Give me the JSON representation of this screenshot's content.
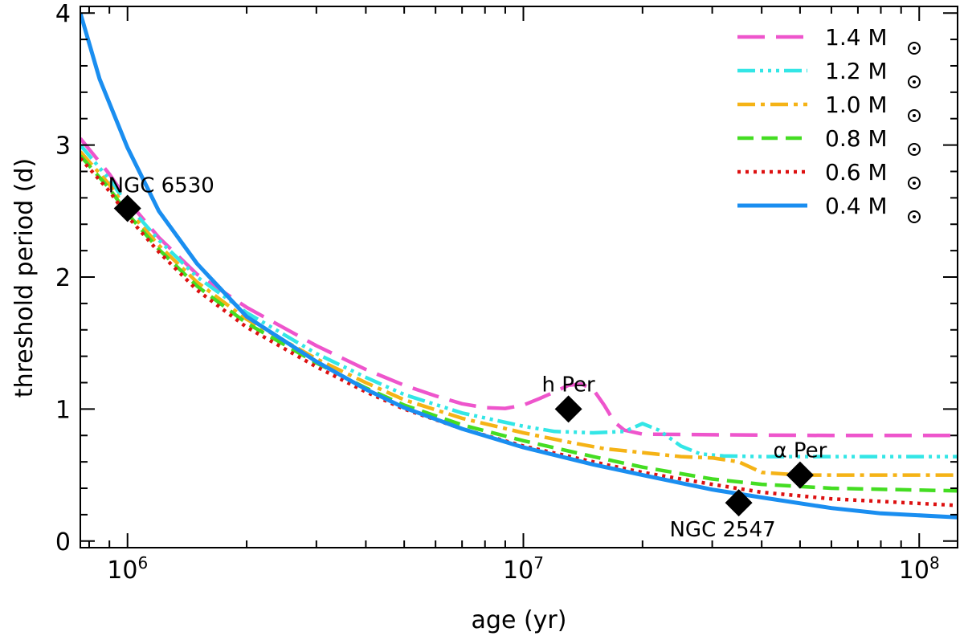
{
  "chart_data": {
    "type": "line",
    "xlabel": "age (yr)",
    "ylabel": "threshold period (d)",
    "xscale": "log",
    "xlim": [
      760000,
      125000000
    ],
    "ylim": [
      -0.05,
      4.05
    ],
    "x_ticks": [
      {
        "value": 1000000,
        "base": "10",
        "exp": "6"
      },
      {
        "value": 10000000,
        "base": "10",
        "exp": "7"
      },
      {
        "value": 100000000,
        "base": "10",
        "exp": "8"
      }
    ],
    "y_ticks": [
      {
        "value": 0,
        "label": "0"
      },
      {
        "value": 1,
        "label": "1"
      },
      {
        "value": 2,
        "label": "2"
      },
      {
        "value": 3,
        "label": "3"
      },
      {
        "value": 4,
        "label": "4"
      }
    ],
    "legend_position": "top-right",
    "series": [
      {
        "name": "1.4 M",
        "mass": "1.4",
        "unit": "M",
        "color": "#ee55cc",
        "dash": "34,14",
        "width": 4.5,
        "points": [
          [
            760000,
            3.05
          ],
          [
            900000,
            2.78
          ],
          [
            1000000,
            2.58
          ],
          [
            1200000,
            2.3
          ],
          [
            1500000,
            2.02
          ],
          [
            2000000,
            1.77
          ],
          [
            3000000,
            1.48
          ],
          [
            4000000,
            1.3
          ],
          [
            5000000,
            1.18
          ],
          [
            6000000,
            1.1
          ],
          [
            7000000,
            1.04
          ],
          [
            8000000,
            1.01
          ],
          [
            9000000,
            1.005
          ],
          [
            10000000,
            1.03
          ],
          [
            11000000,
            1.08
          ],
          [
            12000000,
            1.13
          ],
          [
            13000000,
            1.18
          ],
          [
            14000000,
            1.19
          ],
          [
            15000000,
            1.15
          ],
          [
            16000000,
            1.03
          ],
          [
            17000000,
            0.9
          ],
          [
            18000000,
            0.84
          ],
          [
            20000000,
            0.81
          ],
          [
            30000000,
            0.805
          ],
          [
            60000000,
            0.8
          ],
          [
            125000000,
            0.8
          ]
        ]
      },
      {
        "name": "1.2 M",
        "mass": "1.2",
        "unit": "M",
        "color": "#33e6e6",
        "dash": "22,6,4,6,4,6,4,6",
        "width": 4.5,
        "points": [
          [
            760000,
            3.0
          ],
          [
            900000,
            2.74
          ],
          [
            1000000,
            2.55
          ],
          [
            1200000,
            2.28
          ],
          [
            1500000,
            2.0
          ],
          [
            2000000,
            1.73
          ],
          [
            3000000,
            1.42
          ],
          [
            4000000,
            1.24
          ],
          [
            5000000,
            1.11
          ],
          [
            7000000,
            0.97
          ],
          [
            10000000,
            0.87
          ],
          [
            12000000,
            0.83
          ],
          [
            15000000,
            0.82
          ],
          [
            18000000,
            0.83
          ],
          [
            20000000,
            0.89
          ],
          [
            22000000,
            0.84
          ],
          [
            25000000,
            0.72
          ],
          [
            28000000,
            0.66
          ],
          [
            32000000,
            0.645
          ],
          [
            40000000,
            0.64
          ],
          [
            125000000,
            0.64
          ]
        ]
      },
      {
        "name": "1.0 M",
        "mass": "1.0",
        "unit": "M",
        "color": "#f5b316",
        "dash": "22,7,5,7",
        "width": 4.5,
        "points": [
          [
            760000,
            2.95
          ],
          [
            900000,
            2.7
          ],
          [
            1000000,
            2.51
          ],
          [
            1200000,
            2.24
          ],
          [
            1500000,
            1.96
          ],
          [
            2000000,
            1.68
          ],
          [
            3000000,
            1.38
          ],
          [
            4000000,
            1.2
          ],
          [
            5000000,
            1.07
          ],
          [
            7000000,
            0.93
          ],
          [
            10000000,
            0.82
          ],
          [
            13000000,
            0.75
          ],
          [
            16000000,
            0.7
          ],
          [
            20000000,
            0.67
          ],
          [
            25000000,
            0.64
          ],
          [
            30000000,
            0.63
          ],
          [
            35000000,
            0.6
          ],
          [
            40000000,
            0.52
          ],
          [
            50000000,
            0.5
          ],
          [
            125000000,
            0.5
          ]
        ]
      },
      {
        "name": "0.8 M",
        "mass": "0.8",
        "unit": "M",
        "color": "#44dd22",
        "dash": "20,10",
        "width": 4.5,
        "points": [
          [
            760000,
            2.92
          ],
          [
            900000,
            2.67
          ],
          [
            1000000,
            2.48
          ],
          [
            1200000,
            2.21
          ],
          [
            1500000,
            1.93
          ],
          [
            2000000,
            1.65
          ],
          [
            3000000,
            1.35
          ],
          [
            4000000,
            1.16
          ],
          [
            5000000,
            1.03
          ],
          [
            7000000,
            0.88
          ],
          [
            10000000,
            0.76
          ],
          [
            15000000,
            0.64
          ],
          [
            20000000,
            0.56
          ],
          [
            30000000,
            0.47
          ],
          [
            40000000,
            0.43
          ],
          [
            60000000,
            0.4
          ],
          [
            125000000,
            0.38
          ]
        ]
      },
      {
        "name": "0.6 M",
        "mass": "0.6",
        "unit": "M",
        "color": "#dd1111",
        "dash": "4,6",
        "width": 4.5,
        "points": [
          [
            760000,
            2.9
          ],
          [
            900000,
            2.65
          ],
          [
            1000000,
            2.46
          ],
          [
            1200000,
            2.19
          ],
          [
            1500000,
            1.9
          ],
          [
            2000000,
            1.62
          ],
          [
            3000000,
            1.32
          ],
          [
            4000000,
            1.13
          ],
          [
            5000000,
            1.0
          ],
          [
            7000000,
            0.85
          ],
          [
            10000000,
            0.72
          ],
          [
            15000000,
            0.6
          ],
          [
            20000000,
            0.52
          ],
          [
            30000000,
            0.43
          ],
          [
            40000000,
            0.37
          ],
          [
            60000000,
            0.32
          ],
          [
            125000000,
            0.27
          ]
        ]
      },
      {
        "name": "0.4 M",
        "mass": "0.4",
        "unit": "M",
        "color": "#1a8ef0",
        "dash": "",
        "width": 5,
        "points": [
          [
            760000,
            4.0
          ],
          [
            850000,
            3.5
          ],
          [
            1000000,
            2.98
          ],
          [
            1200000,
            2.5
          ],
          [
            1500000,
            2.1
          ],
          [
            2000000,
            1.7
          ],
          [
            3000000,
            1.36
          ],
          [
            4000000,
            1.15
          ],
          [
            5000000,
            1.01
          ],
          [
            7000000,
            0.85
          ],
          [
            10000000,
            0.71
          ],
          [
            15000000,
            0.58
          ],
          [
            20000000,
            0.5
          ],
          [
            30000000,
            0.39
          ],
          [
            40000000,
            0.33
          ],
          [
            60000000,
            0.25
          ],
          [
            80000000,
            0.21
          ],
          [
            125000000,
            0.18
          ]
        ]
      }
    ],
    "clusters": [
      {
        "name": "NGC 6530",
        "age": 1000000,
        "period": 2.52,
        "label_pos": "above"
      },
      {
        "name": "h Per",
        "age": 13000000,
        "period": 1.0,
        "label_pos": "above"
      },
      {
        "name": "α Per",
        "age": 50000000,
        "period": 0.5,
        "label_pos": "above"
      },
      {
        "name": "NGC 2547",
        "age": 35000000,
        "period": 0.29,
        "label_pos": "below"
      }
    ]
  }
}
